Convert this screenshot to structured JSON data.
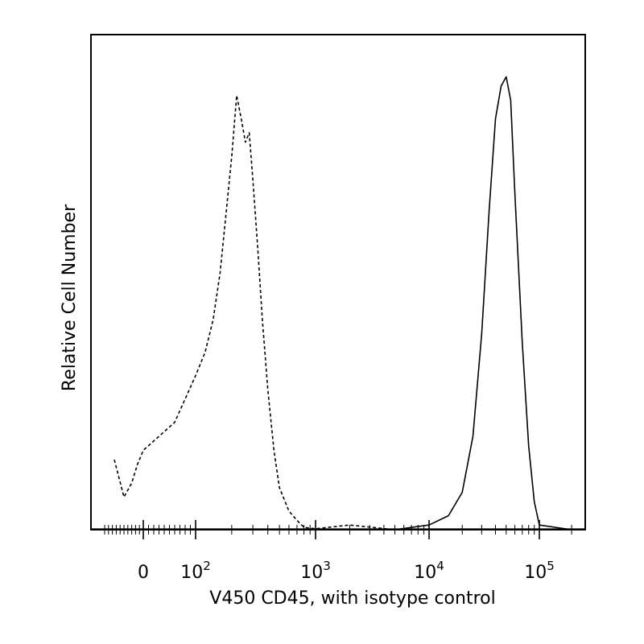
{
  "chart_data": {
    "type": "line",
    "title": "",
    "xlabel": "V450 CD45, with isotype control",
    "ylabel": "Relative Cell Number",
    "x_scale": "biexponential",
    "x_tick_labels": [
      {
        "base": "0",
        "exp": ""
      },
      {
        "base": "10",
        "exp": "2"
      },
      {
        "base": "10",
        "exp": "3"
      },
      {
        "base": "10",
        "exp": "4"
      },
      {
        "base": "10",
        "exp": "5"
      }
    ],
    "legend": "none",
    "grid": false,
    "series": [
      {
        "style": "dashed",
        "color": "#000000",
        "x": [
          -150,
          -100,
          -60,
          -30,
          0,
          20,
          40,
          60,
          80,
          100,
          120,
          140,
          160,
          180,
          200,
          220,
          240,
          260,
          280,
          300,
          330,
          360,
          400,
          450,
          500,
          600,
          700,
          800,
          1000,
          2000,
          5000
        ],
        "y": [
          15,
          7,
          10,
          14,
          17,
          19,
          21,
          23,
          28,
          33,
          38,
          45,
          55,
          68,
          80,
          93,
          88,
          83,
          85,
          75,
          60,
          45,
          30,
          17,
          9,
          4,
          2,
          0.5,
          0.2,
          1,
          0
        ]
      },
      {
        "style": "solid",
        "color": "#000000",
        "x": [
          5000,
          10000,
          15000,
          20000,
          25000,
          30000,
          35000,
          40000,
          45000,
          50000,
          55000,
          60000,
          70000,
          80000,
          90000,
          100000,
          200000
        ],
        "y": [
          0,
          1,
          3,
          8,
          20,
          42,
          68,
          88,
          95,
          97,
          92,
          72,
          40,
          18,
          6,
          1,
          0
        ]
      }
    ]
  }
}
